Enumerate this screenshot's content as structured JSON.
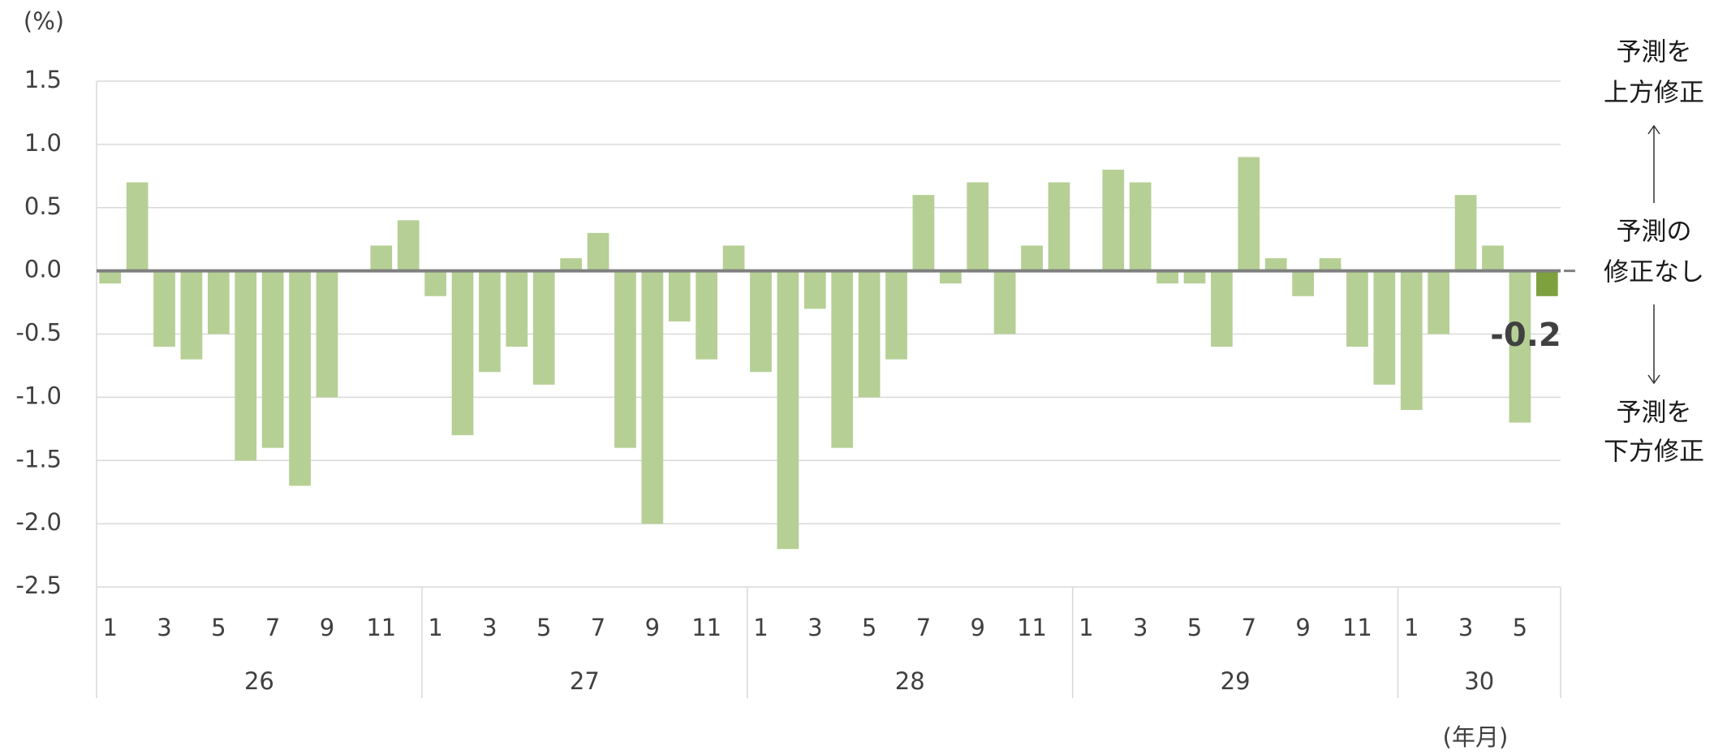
{
  "chart_data": {
    "type": "bar",
    "y_unit": "(%)",
    "x_unit": "(年月)",
    "categories": [
      "1",
      null,
      "3",
      null,
      "5",
      null,
      "7",
      null,
      "9",
      null,
      "11",
      null,
      "1",
      null,
      "3",
      null,
      "5",
      null,
      "7",
      null,
      "9",
      null,
      "11",
      null,
      "1",
      null,
      "3",
      null,
      "5",
      null,
      "7",
      null,
      "9",
      null,
      "11",
      null,
      "1",
      null,
      "3",
      null,
      "5",
      null,
      "7",
      null,
      "9",
      null,
      "11",
      null,
      "1",
      null,
      "3",
      null,
      "5",
      null
    ],
    "groups": [
      {
        "label": "26",
        "count": 12
      },
      {
        "label": "27",
        "count": 12
      },
      {
        "label": "28",
        "count": 12
      },
      {
        "label": "29",
        "count": 12
      },
      {
        "label": "30",
        "count": 6
      }
    ],
    "values": [
      -0.1,
      0.7,
      -0.6,
      -0.7,
      -0.5,
      -1.5,
      -1.4,
      -1.7,
      -1.0,
      0,
      0.2,
      0.4,
      -0.2,
      -1.3,
      -0.8,
      -0.6,
      -0.9,
      0.1,
      0.3,
      -1.4,
      -2.0,
      -0.4,
      -0.7,
      0.2,
      -0.8,
      -2.2,
      -0.3,
      -1.4,
      -1.0,
      -0.7,
      0.6,
      -0.1,
      0.7,
      -0.5,
      0.2,
      0.7,
      0,
      0.8,
      0.7,
      -0.1,
      -0.1,
      -0.6,
      0.9,
      0.1,
      -0.2,
      0.1,
      -0.6,
      -0.9,
      -1.1,
      -0.5,
      0.6,
      0.2,
      -1.2,
      -0.2
    ],
    "color": "#b6cf95",
    "latest_color": "#7ea03f",
    "ylim": [
      -2.5,
      1.5
    ],
    "yticks": [
      {
        "value": -2.5,
        "label": "-2.5"
      },
      {
        "value": -2,
        "label": "-2.0"
      },
      {
        "value": -1.5,
        "label": "-1.5"
      },
      {
        "value": -1,
        "label": "-1.0"
      },
      {
        "value": -0.5,
        "label": "-0.5"
      },
      {
        "value": 0,
        "label": "0.0"
      },
      {
        "value": 0.5,
        "label": "0.5"
      },
      {
        "value": 1,
        "label": "1.0"
      },
      {
        "value": 1.5,
        "label": "1.5"
      }
    ],
    "grid": true,
    "annotations": {
      "up": [
        "予測を",
        "上方修正"
      ],
      "none": [
        "予測の",
        "修正なし"
      ],
      "down": [
        "予測を",
        "下方修正"
      ]
    }
  }
}
